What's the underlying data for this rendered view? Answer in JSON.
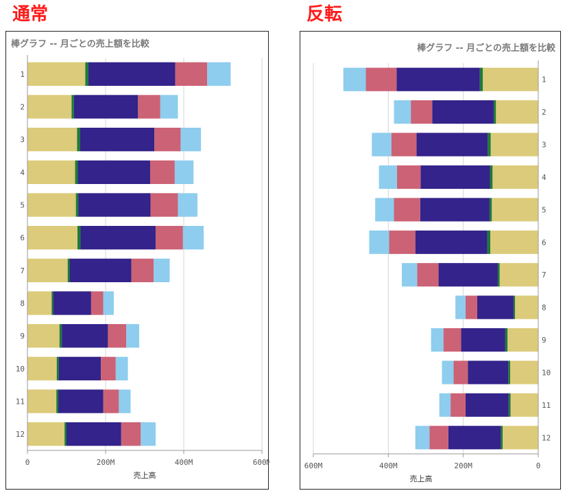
{
  "headings": {
    "normal": "通常",
    "reversed": "反転"
  },
  "chart_data": {
    "type": "bar",
    "orientation": "horizontal",
    "stacked": true,
    "title": "棒グラフ -- 月ごとの売上額を比較",
    "xlabel": "売上高",
    "categories": [
      "1",
      "2",
      "3",
      "4",
      "5",
      "6",
      "7",
      "8",
      "9",
      "10",
      "11",
      "12"
    ],
    "xlim": [
      0,
      600
    ],
    "x_ticks": [
      "0",
      "200M",
      "400M",
      "600M"
    ],
    "x_tick_values": [
      0,
      200,
      400,
      600
    ],
    "grid": "vertical",
    "legend": "none",
    "series": [
      {
        "color": "#dccb7a",
        "values": [
          148,
          113,
          127,
          122,
          124,
          128,
          103,
          62,
          82,
          75,
          74,
          95
        ]
      },
      {
        "color": "#1f7a3a",
        "values": [
          8,
          6,
          8,
          7,
          6,
          8,
          5,
          4,
          6,
          5,
          5,
          5
        ]
      },
      {
        "color": "#33238a",
        "values": [
          222,
          164,
          190,
          185,
          185,
          192,
          158,
          97,
          118,
          108,
          115,
          140
        ]
      },
      {
        "color": "#cc6275",
        "values": [
          82,
          57,
          67,
          63,
          70,
          70,
          57,
          31,
          47,
          38,
          40,
          50
        ]
      },
      {
        "color": "#8ecdee",
        "values": [
          60,
          45,
          52,
          48,
          50,
          53,
          41,
          27,
          33,
          31,
          30,
          38
        ]
      }
    ]
  }
}
